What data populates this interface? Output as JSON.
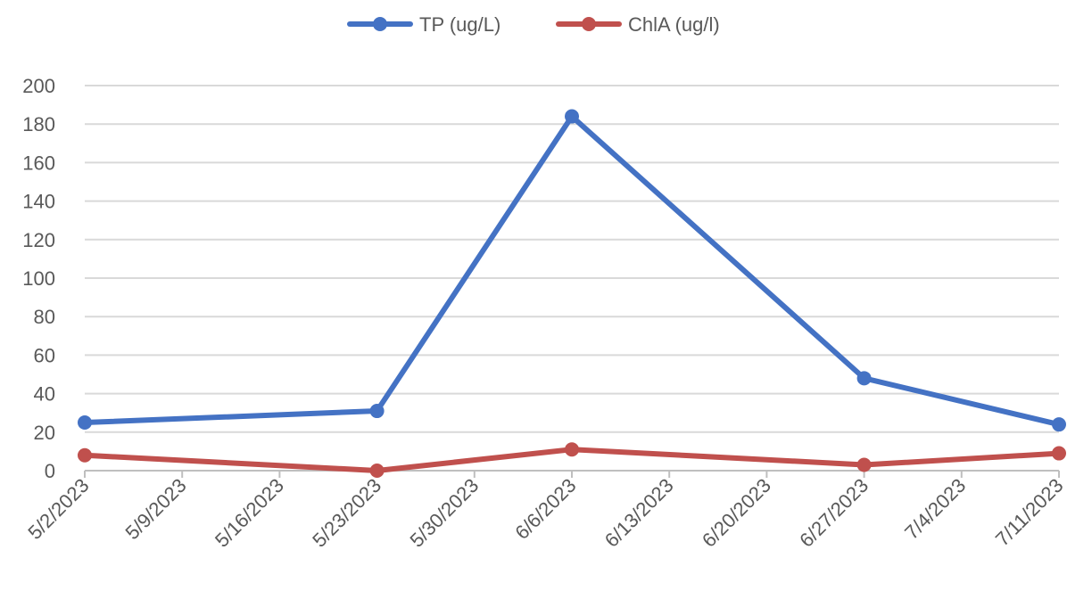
{
  "chart_data": {
    "type": "line",
    "title": "",
    "xlabel": "",
    "ylabel": "",
    "x_axis": {
      "tick_labels": [
        "5/2/2023",
        "5/9/2023",
        "5/16/2023",
        "5/23/2023",
        "5/30/2023",
        "6/6/2023",
        "6/13/2023",
        "6/20/2023",
        "6/27/2023",
        "7/4/2023",
        "7/11/2023"
      ],
      "range": [
        "5/2/2023",
        "7/11/2023"
      ]
    },
    "y_axis": {
      "range": [
        0,
        200
      ],
      "tick_labels": [
        "0",
        "20",
        "40",
        "60",
        "80",
        "100",
        "120",
        "140",
        "160",
        "180",
        "200"
      ]
    },
    "grid": true,
    "legend_position": "top",
    "series": [
      {
        "name": "TP (ug/L)",
        "color": "#4472c4",
        "points": [
          {
            "x": "5/2/2023",
            "y": 25
          },
          {
            "x": "5/23/2023",
            "y": 31
          },
          {
            "x": "6/6/2023",
            "y": 184
          },
          {
            "x": "6/27/2023",
            "y": 48
          },
          {
            "x": "7/11/2023",
            "y": 24
          }
        ]
      },
      {
        "name": "ChlA (ug/l)",
        "color": "#c0504d",
        "points": [
          {
            "x": "5/2/2023",
            "y": 8
          },
          {
            "x": "5/23/2023",
            "y": 0
          },
          {
            "x": "6/6/2023",
            "y": 11
          },
          {
            "x": "6/27/2023",
            "y": 3
          },
          {
            "x": "7/11/2023",
            "y": 9
          }
        ]
      }
    ]
  }
}
